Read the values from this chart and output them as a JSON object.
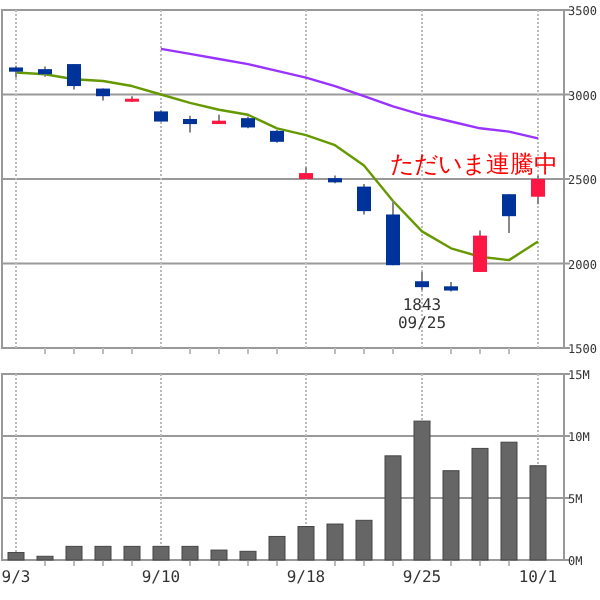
{
  "chart_data": [
    {
      "type": "candlestick",
      "categories": [
        "9/3",
        null,
        null,
        null,
        null,
        "9/10",
        null,
        null,
        null,
        null,
        "9/18",
        null,
        null,
        null,
        "9/25",
        null,
        null,
        null,
        "10/1"
      ],
      "ohlc": [
        [
          3160,
          3170,
          3100,
          3135
        ],
        [
          3150,
          3165,
          3105,
          3120
        ],
        [
          3180,
          3180,
          3030,
          3050
        ],
        [
          3035,
          3035,
          2965,
          2990
        ],
        [
          2970,
          2990,
          2955,
          2975
        ],
        [
          2900,
          2905,
          2840,
          2840
        ],
        [
          2855,
          2875,
          2775,
          2825
        ],
        [
          2825,
          2880,
          2825,
          2845
        ],
        [
          2860,
          2870,
          2800,
          2805
        ],
        [
          2785,
          2790,
          2715,
          2720
        ],
        [
          2500,
          2570,
          2500,
          2535
        ],
        [
          2505,
          2520,
          2475,
          2480
        ],
        [
          2455,
          2470,
          2290,
          2310
        ],
        [
          2290,
          2370,
          1990,
          1990
        ],
        [
          1895,
          1950,
          1843,
          1860
        ],
        [
          1865,
          1890,
          1835,
          1840
        ],
        [
          1950,
          2195,
          1950,
          2165
        ],
        [
          2410,
          2410,
          2180,
          2280
        ],
        [
          2395,
          2520,
          2350,
          2500
        ]
      ],
      "colors": [
        "#003399",
        "#003399",
        "#003399",
        "#003399",
        "#ff1744",
        "#003399",
        "#003399",
        "#ff1744",
        "#003399",
        "#003399",
        "#ff1744",
        "#003399",
        "#003399",
        "#003399",
        "#003399",
        "#003399",
        "#ff1744",
        "#003399",
        "#ff1744"
      ],
      "series": [
        {
          "type": "line",
          "color": "#669900",
          "values": [
            3130,
            3120,
            3090,
            3080,
            3050,
            3000,
            2950,
            2910,
            2880,
            2800,
            2760,
            2700,
            2580,
            2370,
            2190,
            2090,
            2040,
            2020,
            2130
          ]
        },
        {
          "type": "line",
          "color": "#9933ff",
          "values": [
            null,
            null,
            null,
            null,
            null,
            3270,
            3240,
            3210,
            3180,
            3140,
            3100,
            3050,
            2990,
            2930,
            2880,
            2840,
            2800,
            2780,
            2740
          ]
        }
      ],
      "ylim": [
        1500,
        3500
      ],
      "yticks": [
        1500,
        2000,
        2500,
        3000,
        3500
      ],
      "grid": true,
      "tick_labels": "y",
      "annotations": [
        "ただいま連騰中",
        {
          "text": "1843",
          "x": "9/25",
          "y": 1843
        },
        {
          "text": "09/25",
          "x": "9/25",
          "y": 1843
        }
      ]
    },
    {
      "type": "bar",
      "categories": [
        "9/3",
        null,
        null,
        null,
        null,
        "9/10",
        null,
        null,
        null,
        null,
        "9/18",
        null,
        null,
        null,
        "9/25",
        null,
        null,
        null,
        "10/1"
      ],
      "values": [
        0.6,
        0.3,
        1.1,
        1.1,
        1.1,
        1.1,
        1.1,
        0.8,
        0.7,
        1.9,
        2.7,
        2.9,
        3.2,
        8.4,
        11.2,
        7.2,
        9.0,
        9.5,
        7.6
      ],
      "color": "#666666",
      "ylim": [
        0,
        15
      ],
      "yticks": [
        {
          "value": 0,
          "label": "0M"
        },
        {
          "value": 5,
          "label": "5M"
        },
        {
          "value": 10,
          "label": "10M"
        },
        {
          "value": 15,
          "label": "15M"
        }
      ],
      "grid": true
    }
  ]
}
